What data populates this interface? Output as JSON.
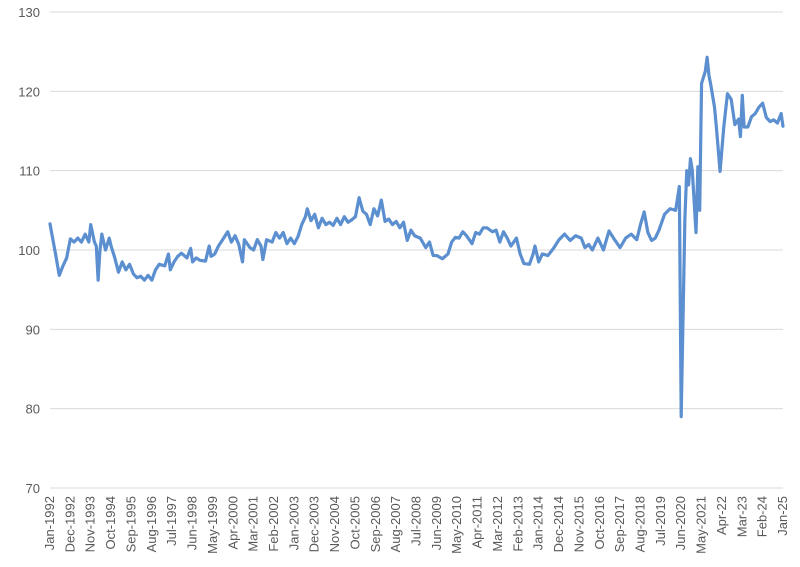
{
  "colors": {
    "series": "#5b8fd0",
    "grid": "#d9d9d9",
    "text": "#595959",
    "background": "#ffffff"
  },
  "chart_data": {
    "type": "line",
    "title": "",
    "xlabel": "",
    "ylabel": "",
    "ylim": [
      70,
      130
    ],
    "yticks": [
      70,
      80,
      90,
      100,
      110,
      120,
      130
    ],
    "ytick_labels": [
      "70",
      "80",
      "90",
      "100",
      "110",
      "120",
      "130"
    ],
    "grid": "horizontal",
    "legend": "none",
    "x_tick_labels": [
      "Jan-1992",
      "Dec-1992",
      "Nov-1993",
      "Oct-1994",
      "Sep-1995",
      "Aug-1996",
      "Jul-1997",
      "Jun-1998",
      "May-1999",
      "Apr-2000",
      "Mar-2001",
      "Feb-2002",
      "Jan-2003",
      "Dec-2003",
      "Nov-2004",
      "Oct-2005",
      "Sep-2006",
      "Aug-2007",
      "Jul-2008",
      "Jun-2009",
      "May-2010",
      "Apr-2011",
      "Mar-2012",
      "Feb-2013",
      "Jan-2014",
      "Dec-2014",
      "Nov-2015",
      "Oct-2016",
      "Sep-2017",
      "Aug-2018",
      "Jul-2019",
      "Jun-2020",
      "May-2021",
      "Apr-22",
      "Mar-23",
      "Feb-24",
      "Jan-25"
    ],
    "series": [
      {
        "points": [
          [
            "1992-01",
            103.3
          ],
          [
            "1992-02",
            102.0
          ],
          [
            "1992-04",
            99.5
          ],
          [
            "1992-06",
            96.8
          ],
          [
            "1992-08",
            98.0
          ],
          [
            "1992-10",
            99.0
          ],
          [
            "1992-12",
            101.4
          ],
          [
            "1993-02",
            101.0
          ],
          [
            "1993-04",
            101.5
          ],
          [
            "1993-06",
            101.0
          ],
          [
            "1993-08",
            102.0
          ],
          [
            "1993-10",
            101.0
          ],
          [
            "1993-11",
            103.2
          ],
          [
            "1994-01",
            101.0
          ],
          [
            "1994-02",
            100.5
          ],
          [
            "1994-03",
            96.2
          ],
          [
            "1994-04",
            100.0
          ],
          [
            "1994-05",
            102.0
          ],
          [
            "1994-07",
            100.0
          ],
          [
            "1994-09",
            101.5
          ],
          [
            "1994-10",
            100.5
          ],
          [
            "1994-12",
            99.0
          ],
          [
            "1995-02",
            97.2
          ],
          [
            "1995-04",
            98.5
          ],
          [
            "1995-06",
            97.5
          ],
          [
            "1995-08",
            98.2
          ],
          [
            "1995-10",
            97.0
          ],
          [
            "1995-12",
            96.5
          ],
          [
            "1996-02",
            96.7
          ],
          [
            "1996-04",
            96.2
          ],
          [
            "1996-06",
            96.8
          ],
          [
            "1996-08",
            96.2
          ],
          [
            "1996-10",
            97.5
          ],
          [
            "1996-12",
            98.2
          ],
          [
            "1997-03",
            98.0
          ],
          [
            "1997-05",
            99.5
          ],
          [
            "1997-06",
            97.5
          ],
          [
            "1997-08",
            98.5
          ],
          [
            "1997-10",
            99.2
          ],
          [
            "1997-12",
            99.6
          ],
          [
            "1998-03",
            99.0
          ],
          [
            "1998-05",
            100.2
          ],
          [
            "1998-06",
            98.5
          ],
          [
            "1998-08",
            99.0
          ],
          [
            "1998-10",
            98.7
          ],
          [
            "1999-01",
            98.6
          ],
          [
            "1999-03",
            100.5
          ],
          [
            "1999-04",
            99.2
          ],
          [
            "1999-06",
            99.5
          ],
          [
            "1999-08",
            100.5
          ],
          [
            "1999-10",
            101.2
          ],
          [
            "2000-01",
            102.3
          ],
          [
            "2000-03",
            101.0
          ],
          [
            "2000-05",
            101.8
          ],
          [
            "2000-07",
            100.7
          ],
          [
            "2000-09",
            98.5
          ],
          [
            "2000-10",
            101.3
          ],
          [
            "2001-01",
            100.3
          ],
          [
            "2001-03",
            100.0
          ],
          [
            "2001-05",
            101.3
          ],
          [
            "2001-07",
            100.5
          ],
          [
            "2001-08",
            98.8
          ],
          [
            "2001-10",
            101.3
          ],
          [
            "2002-01",
            101.0
          ],
          [
            "2002-03",
            102.2
          ],
          [
            "2002-05",
            101.5
          ],
          [
            "2002-07",
            102.2
          ],
          [
            "2002-09",
            100.8
          ],
          [
            "2002-11",
            101.5
          ],
          [
            "2003-01",
            100.8
          ],
          [
            "2003-03",
            101.7
          ],
          [
            "2003-05",
            103.2
          ],
          [
            "2003-07",
            104.2
          ],
          [
            "2003-08",
            105.2
          ],
          [
            "2003-10",
            103.7
          ],
          [
            "2003-12",
            104.5
          ],
          [
            "2004-02",
            102.8
          ],
          [
            "2004-04",
            104.0
          ],
          [
            "2004-06",
            103.2
          ],
          [
            "2004-08",
            103.5
          ],
          [
            "2004-10",
            103.1
          ],
          [
            "2004-12",
            104.0
          ],
          [
            "2005-02",
            103.2
          ],
          [
            "2005-04",
            104.2
          ],
          [
            "2005-06",
            103.5
          ],
          [
            "2005-08",
            103.8
          ],
          [
            "2005-10",
            104.2
          ],
          [
            "2005-12",
            106.6
          ],
          [
            "2006-02",
            104.9
          ],
          [
            "2006-04",
            104.5
          ],
          [
            "2006-06",
            103.2
          ],
          [
            "2006-08",
            105.2
          ],
          [
            "2006-10",
            104.3
          ],
          [
            "2006-12",
            106.3
          ],
          [
            "2007-02",
            103.6
          ],
          [
            "2007-04",
            103.9
          ],
          [
            "2007-06",
            103.2
          ],
          [
            "2007-08",
            103.6
          ],
          [
            "2007-10",
            102.8
          ],
          [
            "2007-12",
            103.5
          ],
          [
            "2008-02",
            101.2
          ],
          [
            "2008-04",
            102.5
          ],
          [
            "2008-06",
            101.8
          ],
          [
            "2008-09",
            101.5
          ],
          [
            "2008-12",
            100.3
          ],
          [
            "2009-02",
            101.0
          ],
          [
            "2009-04",
            99.3
          ],
          [
            "2009-06",
            99.3
          ],
          [
            "2009-09",
            98.9
          ],
          [
            "2009-12",
            99.5
          ],
          [
            "2010-02",
            101.0
          ],
          [
            "2010-04",
            101.6
          ],
          [
            "2010-06",
            101.5
          ],
          [
            "2010-08",
            102.3
          ],
          [
            "2010-10",
            101.8
          ],
          [
            "2011-01",
            100.8
          ],
          [
            "2011-03",
            102.2
          ],
          [
            "2011-05",
            102.0
          ],
          [
            "2011-07",
            102.8
          ],
          [
            "2011-09",
            102.8
          ],
          [
            "2011-12",
            102.3
          ],
          [
            "2012-02",
            102.5
          ],
          [
            "2012-04",
            101.0
          ],
          [
            "2012-06",
            102.3
          ],
          [
            "2012-08",
            101.5
          ],
          [
            "2012-10",
            100.5
          ],
          [
            "2013-01",
            101.5
          ],
          [
            "2013-03",
            99.5
          ],
          [
            "2013-05",
            98.3
          ],
          [
            "2013-08",
            98.2
          ],
          [
            "2013-10",
            99.5
          ],
          [
            "2013-11",
            100.5
          ],
          [
            "2014-01",
            98.5
          ],
          [
            "2014-03",
            99.5
          ],
          [
            "2014-06",
            99.3
          ],
          [
            "2014-09",
            100.2
          ],
          [
            "2014-12",
            101.3
          ],
          [
            "2015-03",
            102.0
          ],
          [
            "2015-06",
            101.2
          ],
          [
            "2015-09",
            101.8
          ],
          [
            "2015-12",
            101.5
          ],
          [
            "2016-02",
            100.3
          ],
          [
            "2016-04",
            100.7
          ],
          [
            "2016-06",
            100.0
          ],
          [
            "2016-09",
            101.5
          ],
          [
            "2016-12",
            100.0
          ],
          [
            "2017-03",
            102.4
          ],
          [
            "2017-06",
            101.3
          ],
          [
            "2017-09",
            100.3
          ],
          [
            "2017-12",
            101.5
          ],
          [
            "2018-03",
            102.0
          ],
          [
            "2018-06",
            101.3
          ],
          [
            "2018-08",
            103.2
          ],
          [
            "2018-10",
            104.8
          ],
          [
            "2018-12",
            102.2
          ],
          [
            "2019-02",
            101.2
          ],
          [
            "2019-04",
            101.5
          ],
          [
            "2019-06",
            102.5
          ],
          [
            "2019-09",
            104.5
          ],
          [
            "2019-12",
            105.2
          ],
          [
            "2020-03",
            105.0
          ],
          [
            "2020-05",
            108.0
          ],
          [
            "2020-06",
            79.0
          ],
          [
            "2020-08",
            104.0
          ],
          [
            "2020-09",
            110.0
          ],
          [
            "2020-10",
            108.2
          ],
          [
            "2020-11",
            111.5
          ],
          [
            "2020-12",
            110.0
          ],
          [
            "2021-02",
            102.2
          ],
          [
            "2021-03",
            110.5
          ],
          [
            "2021-04",
            105.0
          ],
          [
            "2021-05",
            121.0
          ],
          [
            "2021-07",
            122.5
          ],
          [
            "2021-08",
            124.3
          ],
          [
            "2021-09",
            122.0
          ],
          [
            "2021-10",
            120.8
          ],
          [
            "2021-12",
            118.0
          ],
          [
            "2022-01",
            115.5
          ],
          [
            "2022-03",
            109.9
          ],
          [
            "2022-05",
            115.5
          ],
          [
            "2022-07",
            119.7
          ],
          [
            "2022-09",
            119.0
          ],
          [
            "2022-11",
            115.8
          ],
          [
            "2023-01",
            116.5
          ],
          [
            "2023-02",
            114.3
          ],
          [
            "2023-03",
            119.5
          ],
          [
            "2023-04",
            115.5
          ],
          [
            "2023-06",
            115.5
          ],
          [
            "2023-08",
            116.8
          ],
          [
            "2023-10",
            117.2
          ],
          [
            "2023-12",
            118.0
          ],
          [
            "2024-02",
            118.5
          ],
          [
            "2024-04",
            116.7
          ],
          [
            "2024-06",
            116.2
          ],
          [
            "2024-08",
            116.4
          ],
          [
            "2024-10",
            116.0
          ],
          [
            "2024-12",
            117.2
          ],
          [
            "2025-01",
            115.6
          ]
        ]
      }
    ]
  }
}
